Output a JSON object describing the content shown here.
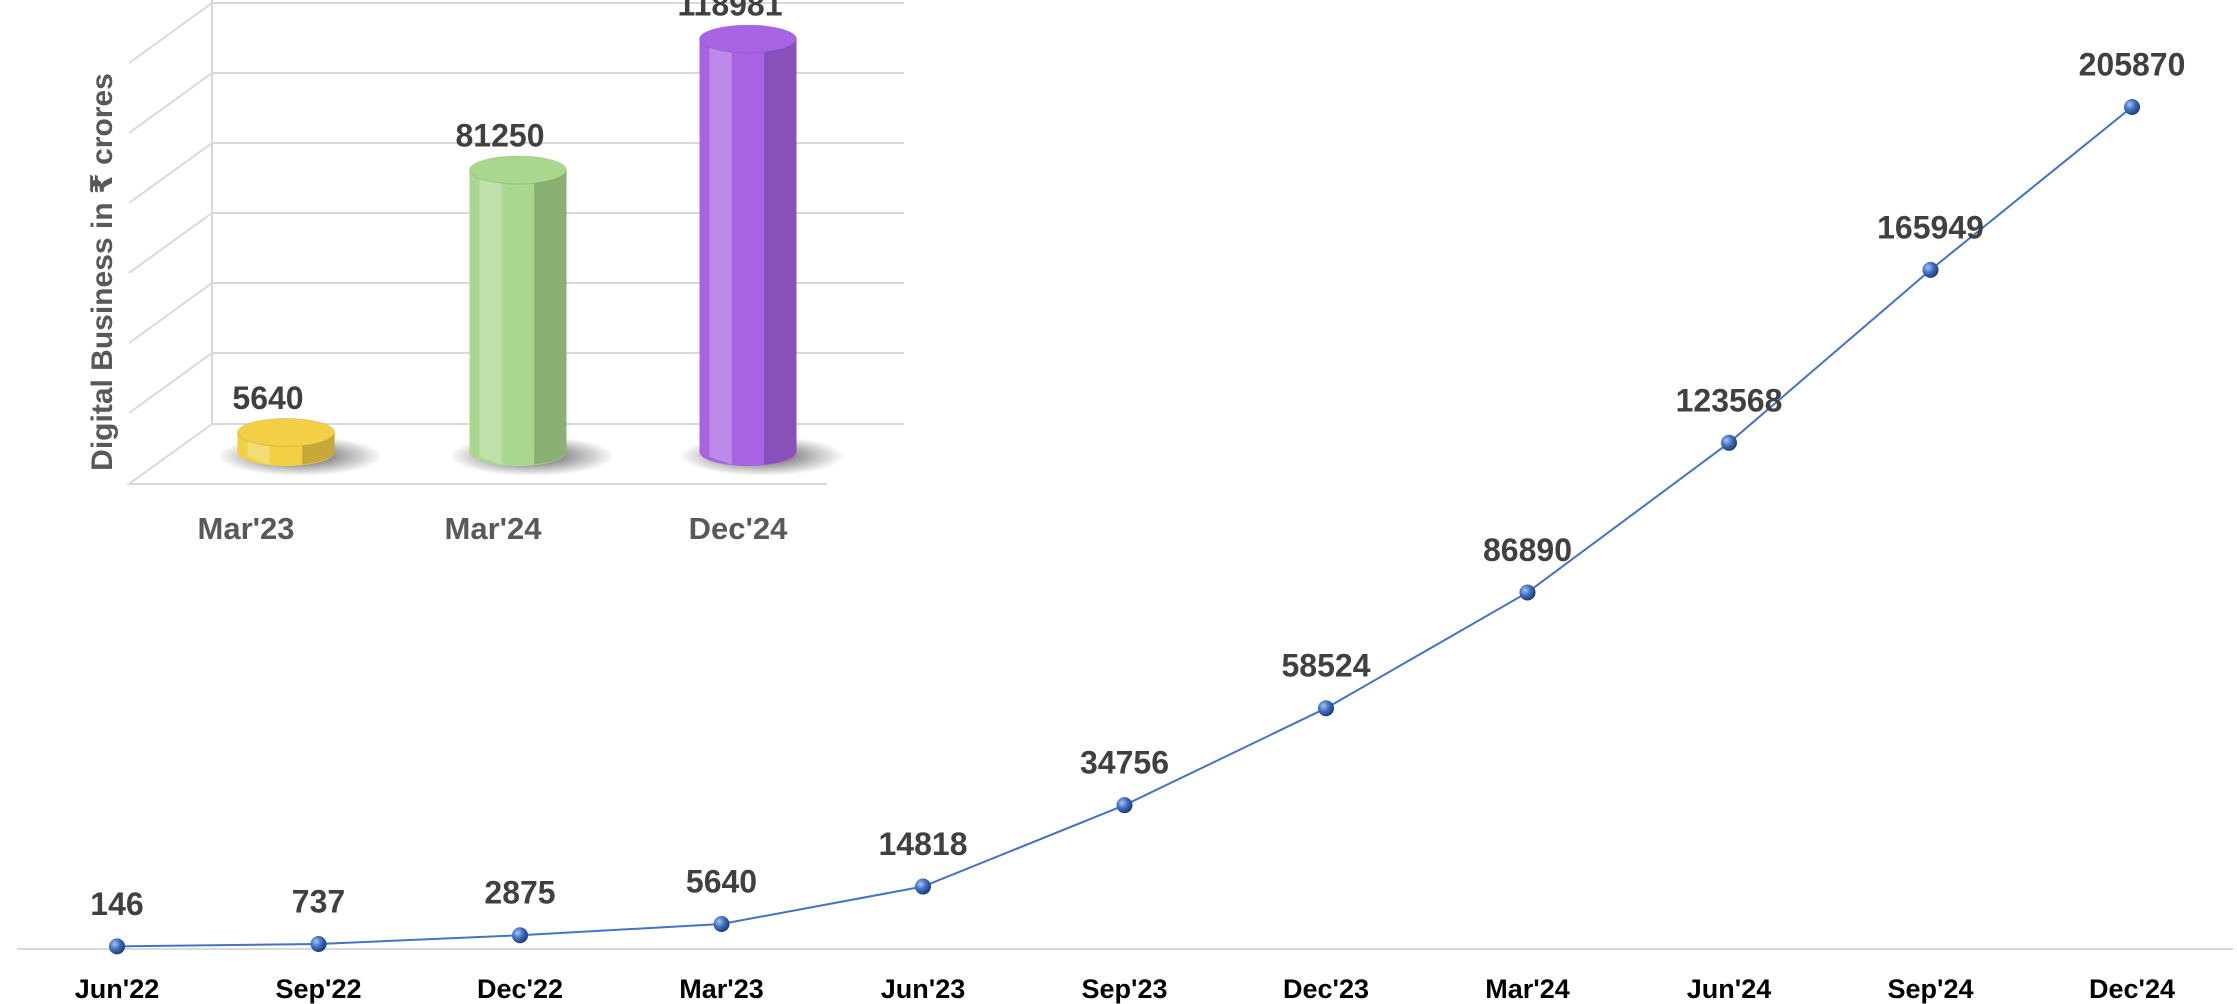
{
  "chart_data": [
    {
      "type": "cylinder_bar",
      "y_label": "Digital Business in ₹ crores",
      "categories": [
        "Mar'23",
        "Mar'24",
        "Dec'24"
      ],
      "values": [
        5640,
        81250,
        118981
      ],
      "colors": [
        "#f2cf45",
        "#a9d78e",
        "#a763e3"
      ]
    },
    {
      "type": "line",
      "categories": [
        "Jun'22",
        "Sep'22",
        "Dec'22",
        "Mar'23",
        "Jun'23",
        "Sep'23",
        "Dec'23",
        "Mar'24",
        "Jun'24",
        "Sep'24",
        "Dec'24"
      ],
      "values": [
        146,
        737,
        2875,
        5640,
        14818,
        34756,
        58524,
        86890,
        123568,
        165949,
        205870
      ],
      "color": "#4472c4"
    }
  ]
}
